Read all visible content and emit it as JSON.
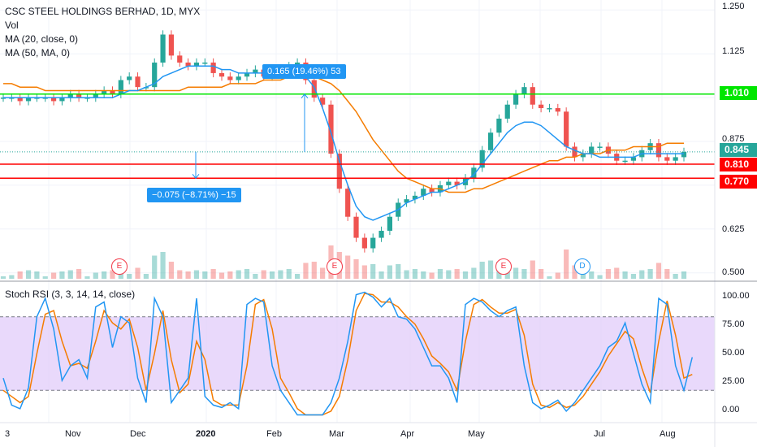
{
  "chart_data": [
    {
      "type": "candlestick",
      "title": "CSC STEEL HOLDINGS BERHAD, 1D, MYX",
      "legend": [
        "Vol",
        "MA (20, close, 0)",
        "MA (50, MA, 0)"
      ],
      "y_axis_ticks": [
        "1.250",
        "1.125",
        "1.010",
        "0.875",
        "0.845",
        "0.810",
        "0.770",
        "0.625",
        "0.500"
      ],
      "ylim": [
        0.49,
        1.26
      ],
      "x_axis_ticks": [
        "3",
        "Nov",
        "Dec",
        "2020",
        "Feb",
        "Mar",
        "Apr",
        "May",
        "Jul",
        "Aug"
      ],
      "close_series": [
        1.0,
        1.0,
        0.99,
        1.0,
        1.0,
        1.0,
        0.99,
        1.0,
        1.01,
        1.0,
        1.0,
        1.01,
        1.02,
        1.01,
        1.05,
        1.06,
        1.03,
        1.03,
        1.1,
        1.18,
        1.12,
        1.1,
        1.09,
        1.1,
        1.1,
        1.07,
        1.06,
        1.05,
        1.06,
        1.07,
        1.08,
        1.06,
        1.07,
        1.08,
        1.09,
        1.1,
        1.05,
        1.0,
        0.98,
        0.84,
        0.74,
        0.66,
        0.6,
        0.57,
        0.6,
        0.62,
        0.66,
        0.7,
        0.71,
        0.72,
        0.74,
        0.73,
        0.75,
        0.76,
        0.75,
        0.77,
        0.8,
        0.85,
        0.9,
        0.94,
        0.98,
        1.01,
        1.03,
        0.98,
        0.97,
        0.97,
        0.96,
        0.86,
        0.83,
        0.84,
        0.86,
        0.86,
        0.84,
        0.82,
        0.82,
        0.83,
        0.85,
        0.87,
        0.83,
        0.82,
        0.83,
        0.845
      ],
      "ma20_series": [
        1.0,
        1.0,
        1.0,
        1.0,
        1.0,
        1.0,
        1.0,
        1.0,
        1.0,
        1.0,
        1.0,
        1.0,
        1.0,
        1.0,
        1.01,
        1.02,
        1.02,
        1.03,
        1.04,
        1.06,
        1.07,
        1.08,
        1.09,
        1.09,
        1.09,
        1.09,
        1.08,
        1.08,
        1.07,
        1.07,
        1.07,
        1.07,
        1.07,
        1.07,
        1.07,
        1.07,
        1.06,
        1.03,
        0.97,
        0.9,
        0.82,
        0.75,
        0.69,
        0.66,
        0.65,
        0.66,
        0.67,
        0.68,
        0.7,
        0.71,
        0.72,
        0.73,
        0.73,
        0.74,
        0.75,
        0.76,
        0.78,
        0.81,
        0.84,
        0.87,
        0.9,
        0.92,
        0.93,
        0.93,
        0.92,
        0.9,
        0.88,
        0.86,
        0.85,
        0.84,
        0.84,
        0.83,
        0.83,
        0.83,
        0.83,
        0.83,
        0.84,
        0.84,
        0.84,
        0.84,
        0.84,
        0.84
      ],
      "ma50_series": [
        1.04,
        1.04,
        1.03,
        1.03,
        1.03,
        1.02,
        1.02,
        1.02,
        1.02,
        1.02,
        1.02,
        1.02,
        1.02,
        1.02,
        1.02,
        1.02,
        1.02,
        1.02,
        1.02,
        1.02,
        1.02,
        1.02,
        1.03,
        1.03,
        1.03,
        1.03,
        1.03,
        1.04,
        1.04,
        1.04,
        1.04,
        1.05,
        1.05,
        1.05,
        1.06,
        1.06,
        1.06,
        1.06,
        1.05,
        1.04,
        1.02,
        0.99,
        0.96,
        0.92,
        0.88,
        0.85,
        0.82,
        0.79,
        0.77,
        0.76,
        0.75,
        0.74,
        0.74,
        0.73,
        0.73,
        0.73,
        0.74,
        0.74,
        0.75,
        0.76,
        0.77,
        0.78,
        0.79,
        0.8,
        0.81,
        0.82,
        0.82,
        0.83,
        0.83,
        0.84,
        0.84,
        0.84,
        0.85,
        0.85,
        0.85,
        0.86,
        0.86,
        0.86,
        0.86,
        0.87,
        0.87,
        0.87
      ]
    },
    {
      "type": "line",
      "title": "Stoch RSI (3, 3, 14, 14, close)",
      "y_axis_ticks": [
        "100.00",
        "75.00",
        "50.00",
        "25.00",
        "0.00"
      ],
      "ylim": [
        -5,
        105
      ],
      "k_series": [
        30,
        8,
        5,
        22,
        80,
        95,
        70,
        28,
        40,
        45,
        30,
        88,
        92,
        55,
        80,
        75,
        30,
        10,
        95,
        80,
        10,
        20,
        30,
        95,
        15,
        8,
        6,
        10,
        5,
        90,
        95,
        92,
        40,
        20,
        10,
        0,
        0,
        0,
        0,
        10,
        30,
        60,
        98,
        100,
        96,
        88,
        95,
        80,
        78,
        70,
        55,
        40,
        40,
        30,
        10,
        90,
        95,
        92,
        85,
        80,
        85,
        88,
        40,
        10,
        5,
        8,
        12,
        3,
        10,
        20,
        30,
        40,
        55,
        60,
        75,
        50,
        25,
        10,
        95,
        90,
        40,
        20,
        47
      ],
      "d_series": [
        20,
        15,
        10,
        15,
        50,
        82,
        85,
        60,
        40,
        42,
        38,
        60,
        85,
        75,
        70,
        78,
        55,
        20,
        50,
        85,
        45,
        18,
        25,
        60,
        45,
        12,
        8,
        8,
        8,
        40,
        90,
        94,
        70,
        30,
        18,
        5,
        0,
        0,
        0,
        3,
        15,
        45,
        85,
        99,
        98,
        92,
        92,
        88,
        80,
        74,
        62,
        48,
        42,
        35,
        20,
        60,
        90,
        94,
        88,
        83,
        83,
        86,
        65,
        25,
        8,
        6,
        10,
        6,
        8,
        15,
        25,
        35,
        48,
        58,
        68,
        62,
        38,
        18,
        60,
        93,
        65,
        30,
        33
      ],
      "overbought": 80,
      "oversold": 20
    }
  ],
  "price_labels": {
    "level_1": {
      "value": "1.010",
      "color": "#00e600"
    },
    "last": {
      "value": "0.845",
      "color": "#26a69a"
    },
    "level_2": {
      "value": "0.810",
      "color": "#ff0000"
    },
    "level_3": {
      "value": "0.770",
      "color": "#ff0000"
    }
  },
  "measurements": {
    "up": "0.165 (19.46%) 53",
    "down": "−0.075 (−8.71%) −15"
  },
  "events": {
    "earnings": [
      "E",
      "E",
      "E"
    ],
    "dividend": "D"
  },
  "colors": {
    "up": "#26a69a",
    "down": "#ef5350",
    "ma20": "#2196f3",
    "ma50": "#f57c00",
    "rsi_k": "#2196f3",
    "rsi_d": "#f57c00",
    "rsi_band": "#e1ccfa",
    "measure": "#2196f3"
  }
}
